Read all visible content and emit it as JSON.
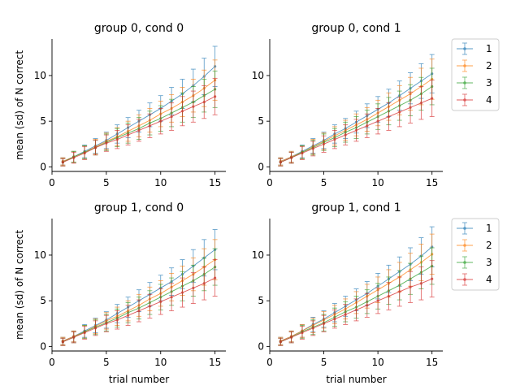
{
  "colors": {
    "1": "#1f77b4",
    "2": "#ff7f0e",
    "3": "#2ca02c",
    "4": "#d62728"
  },
  "legend_labels": [
    "1",
    "2",
    "3",
    "4"
  ],
  "chart_data": [
    {
      "type": "line",
      "title": "group 0, cond 0",
      "xlabel": "",
      "ylabel": "mean (sd) of N correct",
      "xlim": [
        0,
        16
      ],
      "ylim": [
        -0.5,
        14
      ],
      "xticks": [
        0,
        5,
        10,
        15
      ],
      "yticks": [
        0,
        5,
        10
      ],
      "x": [
        1,
        2,
        3,
        4,
        5,
        6,
        7,
        8,
        9,
        10,
        11,
        12,
        13,
        14,
        15
      ],
      "series": [
        {
          "name": "1",
          "values": [
            0.6,
            1.1,
            1.7,
            2.3,
            2.9,
            3.6,
            4.3,
            5.0,
            5.7,
            6.4,
            7.2,
            8.0,
            8.9,
            9.9,
            11.0
          ],
          "sd": [
            0.4,
            0.6,
            0.7,
            0.8,
            0.9,
            1.0,
            1.1,
            1.2,
            1.3,
            1.4,
            1.5,
            1.6,
            1.8,
            2.0,
            2.2
          ]
        },
        {
          "name": "2",
          "values": [
            0.6,
            1.1,
            1.6,
            2.2,
            2.8,
            3.3,
            3.9,
            4.5,
            5.1,
            5.8,
            6.4,
            7.1,
            7.8,
            8.6,
            9.5
          ],
          "sd": [
            0.4,
            0.6,
            0.7,
            0.8,
            0.9,
            1.0,
            1.1,
            1.2,
            1.3,
            1.4,
            1.5,
            1.6,
            1.8,
            2.0,
            2.2
          ]
        },
        {
          "name": "3",
          "values": [
            0.5,
            1.1,
            1.6,
            2.1,
            2.7,
            3.2,
            3.7,
            4.2,
            4.8,
            5.3,
            5.9,
            6.5,
            7.1,
            7.8,
            8.5
          ],
          "sd": [
            0.4,
            0.6,
            0.7,
            0.8,
            0.9,
            1.0,
            1.1,
            1.2,
            1.3,
            1.4,
            1.5,
            1.6,
            1.7,
            1.8,
            2.0
          ]
        },
        {
          "name": "4",
          "values": [
            0.5,
            1.0,
            1.5,
            2.1,
            2.6,
            3.0,
            3.5,
            4.0,
            4.5,
            5.0,
            5.5,
            6.1,
            6.6,
            7.1,
            7.7
          ],
          "sd": [
            0.4,
            0.6,
            0.7,
            0.8,
            0.9,
            1.0,
            1.1,
            1.2,
            1.3,
            1.4,
            1.5,
            1.6,
            1.7,
            1.8,
            2.0
          ]
        }
      ]
    },
    {
      "type": "line",
      "title": "group 0, cond 1",
      "xlabel": "",
      "ylabel": "",
      "xlim": [
        0,
        16
      ],
      "ylim": [
        -0.5,
        14
      ],
      "xticks": [
        0,
        5,
        10,
        15
      ],
      "yticks": [
        0,
        5,
        10
      ],
      "legend": "outside-right",
      "x": [
        1,
        2,
        3,
        4,
        5,
        6,
        7,
        8,
        9,
        10,
        11,
        12,
        13,
        14,
        15
      ],
      "series": [
        {
          "name": "1",
          "values": [
            0.6,
            1.1,
            1.7,
            2.3,
            2.9,
            3.6,
            4.2,
            4.9,
            5.6,
            6.3,
            7.0,
            7.8,
            8.6,
            9.4,
            10.2
          ],
          "sd": [
            0.4,
            0.6,
            0.7,
            0.8,
            0.9,
            1.0,
            1.1,
            1.2,
            1.3,
            1.4,
            1.5,
            1.6,
            1.7,
            1.9,
            2.1
          ]
        },
        {
          "name": "2",
          "values": [
            0.6,
            1.1,
            1.6,
            2.2,
            2.8,
            3.4,
            4.0,
            4.6,
            5.2,
            5.9,
            6.6,
            7.3,
            8.0,
            8.8,
            9.6
          ],
          "sd": [
            0.4,
            0.6,
            0.7,
            0.8,
            0.9,
            1.0,
            1.1,
            1.2,
            1.3,
            1.4,
            1.5,
            1.6,
            1.8,
            2.0,
            2.2
          ]
        },
        {
          "name": "3",
          "values": [
            0.5,
            1.0,
            1.6,
            2.1,
            2.7,
            3.2,
            3.8,
            4.3,
            4.9,
            5.5,
            6.1,
            6.7,
            7.3,
            8.0,
            8.8
          ],
          "sd": [
            0.4,
            0.6,
            0.7,
            0.8,
            0.9,
            1.0,
            1.1,
            1.2,
            1.3,
            1.4,
            1.5,
            1.6,
            1.7,
            1.8,
            2.0
          ]
        },
        {
          "name": "4",
          "values": [
            0.5,
            1.0,
            1.5,
            2.0,
            2.5,
            3.0,
            3.5,
            4.0,
            4.5,
            5.0,
            5.5,
            6.0,
            6.5,
            7.0,
            7.5
          ],
          "sd": [
            0.4,
            0.6,
            0.7,
            0.8,
            0.9,
            1.0,
            1.1,
            1.2,
            1.3,
            1.4,
            1.5,
            1.6,
            1.7,
            1.8,
            2.0
          ]
        }
      ]
    },
    {
      "type": "line",
      "title": "group 1, cond 0",
      "xlabel": "trial number",
      "ylabel": "mean (sd) of N correct",
      "xlim": [
        0,
        16
      ],
      "ylim": [
        -0.5,
        14
      ],
      "xticks": [
        0,
        5,
        10,
        15
      ],
      "yticks": [
        0,
        5,
        10
      ],
      "x": [
        1,
        2,
        3,
        4,
        5,
        6,
        7,
        8,
        9,
        10,
        11,
        12,
        13,
        14,
        15
      ],
      "series": [
        {
          "name": "1",
          "values": [
            0.6,
            1.1,
            1.7,
            2.3,
            2.9,
            3.6,
            4.3,
            5.0,
            5.7,
            6.4,
            7.1,
            7.9,
            8.8,
            9.7,
            10.6
          ],
          "sd": [
            0.4,
            0.6,
            0.7,
            0.8,
            0.9,
            1.0,
            1.1,
            1.2,
            1.3,
            1.4,
            1.5,
            1.6,
            1.8,
            2.0,
            2.2
          ]
        },
        {
          "name": "2",
          "values": [
            0.6,
            1.1,
            1.6,
            2.2,
            2.8,
            3.3,
            3.9,
            4.5,
            5.2,
            5.8,
            6.5,
            7.2,
            7.9,
            8.7,
            9.5
          ],
          "sd": [
            0.4,
            0.6,
            0.7,
            0.8,
            0.9,
            1.0,
            1.1,
            1.2,
            1.3,
            1.4,
            1.5,
            1.6,
            1.8,
            2.0,
            2.2
          ]
        },
        {
          "name": "3",
          "values": [
            0.5,
            1.0,
            1.6,
            2.1,
            2.6,
            3.1,
            3.7,
            4.2,
            4.8,
            5.4,
            6.0,
            6.6,
            7.2,
            7.9,
            8.7
          ],
          "sd": [
            0.4,
            0.6,
            0.7,
            0.8,
            0.9,
            1.0,
            1.1,
            1.2,
            1.3,
            1.4,
            1.5,
            1.6,
            1.7,
            1.8,
            2.0
          ]
        },
        {
          "name": "4",
          "values": [
            0.5,
            1.0,
            1.5,
            2.0,
            2.5,
            2.9,
            3.4,
            3.9,
            4.4,
            4.9,
            5.4,
            5.9,
            6.4,
            6.9,
            7.5
          ],
          "sd": [
            0.4,
            0.6,
            0.7,
            0.8,
            0.9,
            1.0,
            1.1,
            1.2,
            1.3,
            1.4,
            1.5,
            1.6,
            1.7,
            1.8,
            2.0
          ]
        }
      ]
    },
    {
      "type": "line",
      "title": "group 1, cond 1",
      "xlabel": "trial number",
      "ylabel": "",
      "xlim": [
        0,
        16
      ],
      "ylim": [
        -0.5,
        14
      ],
      "xticks": [
        0,
        5,
        10,
        15
      ],
      "yticks": [
        0,
        5,
        10
      ],
      "legend": "outside-right",
      "x": [
        1,
        2,
        3,
        4,
        5,
        6,
        7,
        8,
        9,
        10,
        11,
        12,
        13,
        14,
        15
      ],
      "series": [
        {
          "name": "1",
          "values": [
            0.6,
            1.1,
            1.7,
            2.4,
            3.0,
            3.7,
            4.4,
            5.1,
            5.8,
            6.6,
            7.4,
            8.2,
            9.0,
            9.9,
            10.9
          ],
          "sd": [
            0.4,
            0.6,
            0.7,
            0.8,
            0.9,
            1.0,
            1.1,
            1.2,
            1.3,
            1.4,
            1.5,
            1.6,
            1.8,
            2.0,
            2.2
          ]
        },
        {
          "name": "2",
          "values": [
            0.6,
            1.1,
            1.7,
            2.3,
            2.9,
            3.5,
            4.1,
            4.8,
            5.5,
            6.2,
            6.9,
            7.6,
            8.4,
            9.2,
            10.1
          ],
          "sd": [
            0.4,
            0.6,
            0.7,
            0.8,
            0.9,
            1.0,
            1.1,
            1.2,
            1.3,
            1.4,
            1.5,
            1.6,
            1.8,
            2.0,
            2.2
          ]
        },
        {
          "name": "3",
          "values": [
            0.5,
            1.0,
            1.6,
            2.1,
            2.6,
            3.2,
            3.8,
            4.3,
            4.9,
            5.5,
            6.1,
            6.7,
            7.4,
            8.1,
            8.8
          ],
          "sd": [
            0.4,
            0.6,
            0.7,
            0.8,
            0.9,
            1.0,
            1.1,
            1.2,
            1.3,
            1.4,
            1.5,
            1.6,
            1.7,
            1.8,
            2.0
          ]
        },
        {
          "name": "4",
          "values": [
            0.5,
            1.0,
            1.5,
            2.0,
            2.5,
            3.0,
            3.5,
            4.0,
            4.5,
            5.0,
            5.5,
            6.0,
            6.5,
            6.9,
            7.4
          ],
          "sd": [
            0.4,
            0.6,
            0.7,
            0.8,
            0.9,
            1.0,
            1.1,
            1.2,
            1.3,
            1.4,
            1.5,
            1.6,
            1.7,
            1.8,
            2.0
          ]
        }
      ]
    }
  ]
}
